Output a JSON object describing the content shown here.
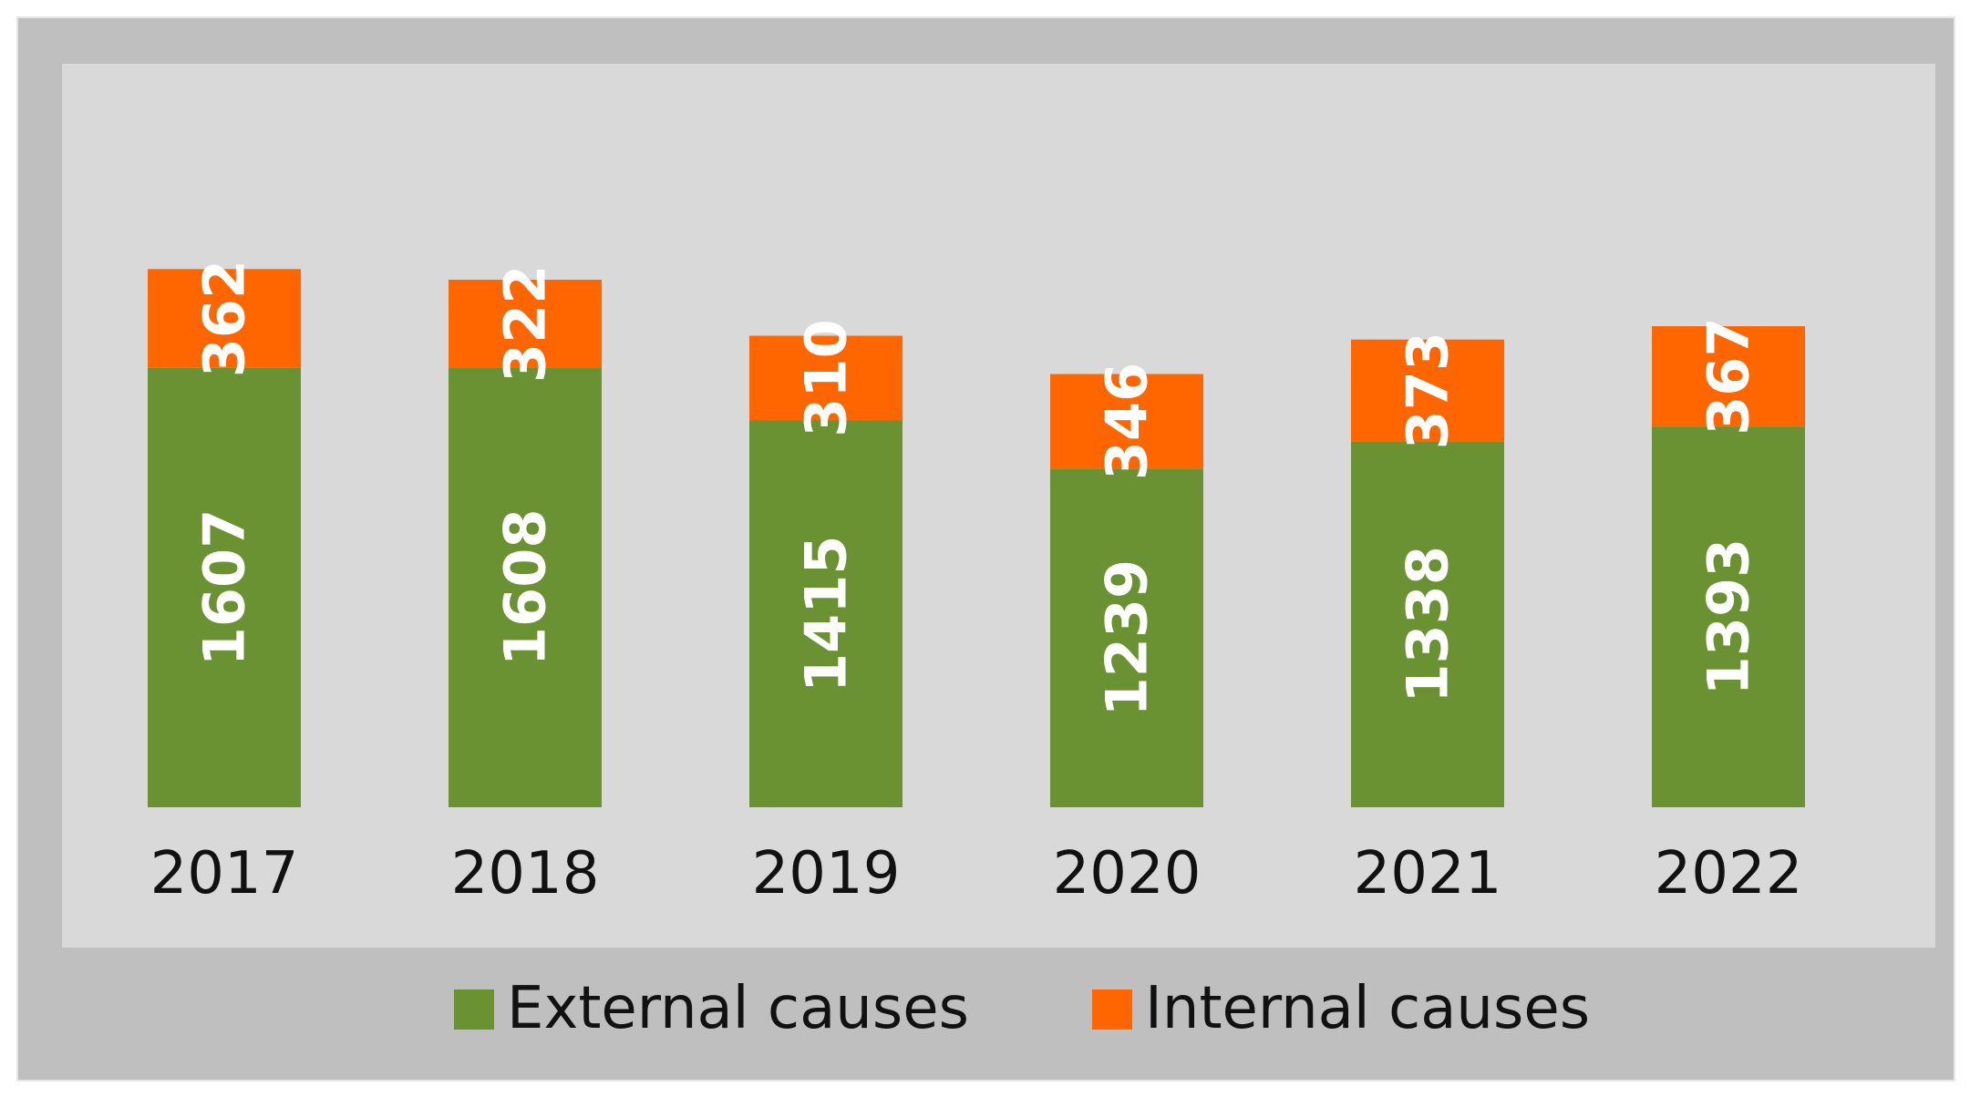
{
  "chart_data": {
    "type": "bar",
    "stacked": true,
    "orientation": "vertical",
    "categories": [
      "2017",
      "2018",
      "2019",
      "2020",
      "2021",
      "2022"
    ],
    "series": [
      {
        "name": "External causes",
        "color": "#6a9232",
        "values": [
          1607,
          1608,
          1415,
          1239,
          1338,
          1393
        ]
      },
      {
        "name": "Internal causes",
        "color": "#ff6600",
        "values": [
          362,
          322,
          310,
          346,
          373,
          367
        ]
      }
    ],
    "ylim": [
      0,
      2100
    ],
    "grid": false,
    "legend": "bottom-center",
    "label_orientation": "vertical",
    "plot_background": "#d9d9d9",
    "frame_background": "#bfbfbf"
  }
}
